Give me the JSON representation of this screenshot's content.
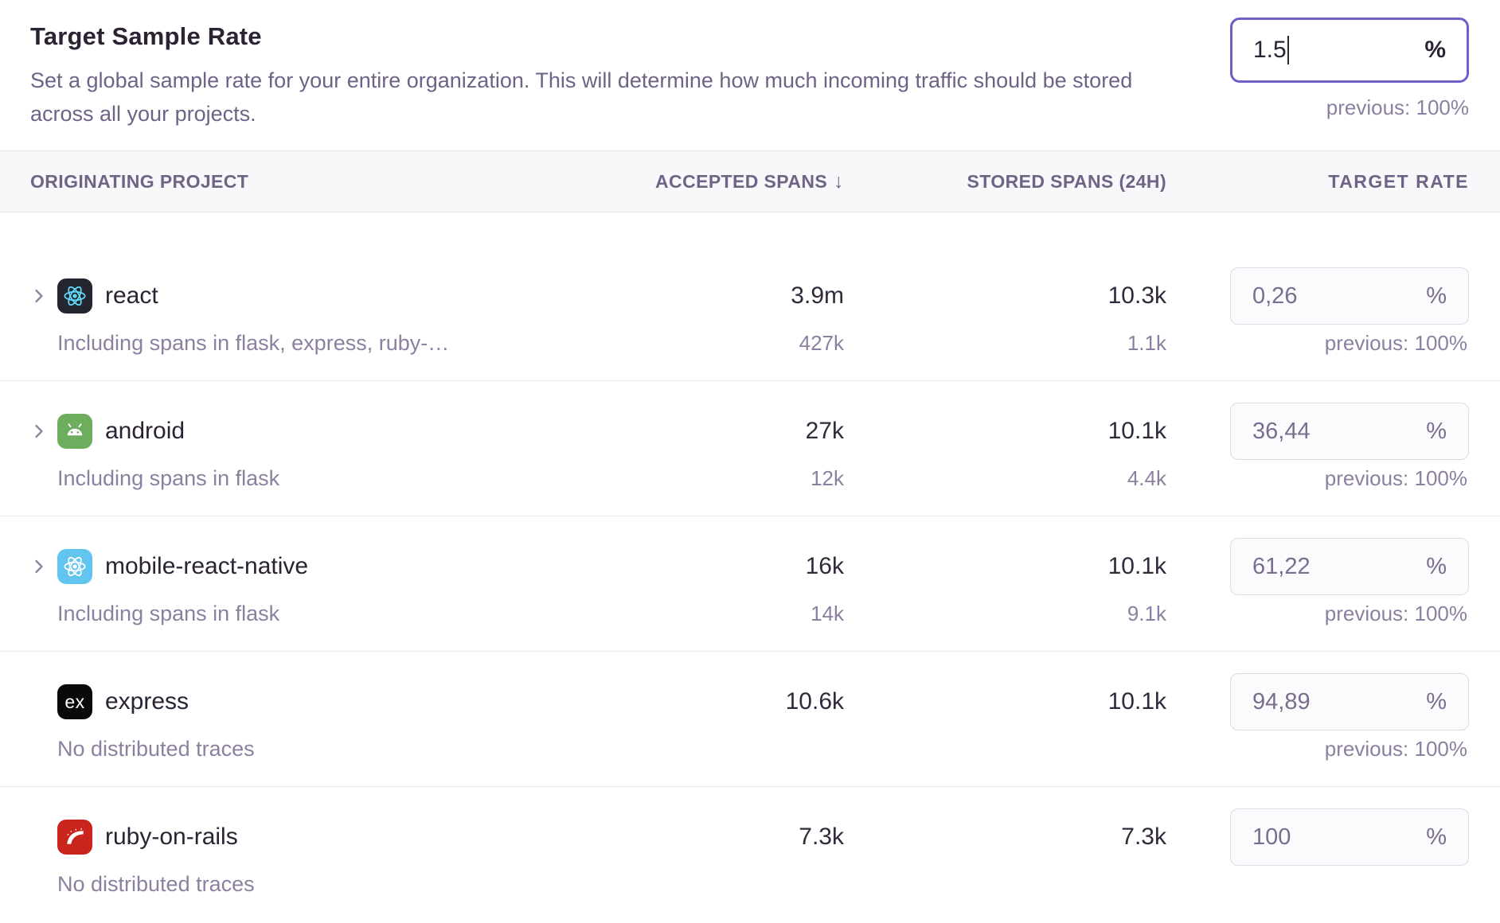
{
  "header": {
    "title": "Target Sample Rate",
    "description": "Set a global sample rate for your entire organization. This will determine how much incoming traffic should be stored across all your projects.",
    "global_input": {
      "value": "1.5",
      "suffix": "%",
      "previous": "previous: 100%"
    }
  },
  "table": {
    "columns": {
      "project": "Originating Project",
      "accepted": "Accepted Spans",
      "accepted_sort_icon": "↓",
      "stored": "Stored Spans (24h)",
      "target": "Target Rate"
    },
    "rows": [
      {
        "expandable": true,
        "platform": "react",
        "name": "react",
        "context": "Including spans in flask, express, ruby-…",
        "accepted": "3.9m",
        "accepted_sub": "427k",
        "stored": "10.3k",
        "stored_sub": "1.1k",
        "rate": "0,26",
        "suffix": "%",
        "previous": "previous: 100%"
      },
      {
        "expandable": true,
        "platform": "android",
        "name": "android",
        "context": "Including spans in flask",
        "accepted": "27k",
        "accepted_sub": "12k",
        "stored": "10.1k",
        "stored_sub": "4.4k",
        "rate": "36,44",
        "suffix": "%",
        "previous": "previous: 100%"
      },
      {
        "expandable": true,
        "platform": "react-native",
        "name": "mobile-react-native",
        "context": "Including spans in flask",
        "accepted": "16k",
        "accepted_sub": "14k",
        "stored": "10.1k",
        "stored_sub": "9.1k",
        "rate": "61,22",
        "suffix": "%",
        "previous": "previous: 100%"
      },
      {
        "expandable": false,
        "platform": "express",
        "name": "express",
        "context": "No distributed traces",
        "accepted": "10.6k",
        "accepted_sub": "",
        "stored": "10.1k",
        "stored_sub": "",
        "rate": "94,89",
        "suffix": "%",
        "previous": "previous: 100%"
      },
      {
        "expandable": false,
        "platform": "ruby-on-rails",
        "name": "ruby-on-rails",
        "context": "No distributed traces",
        "accepted": "7.3k",
        "accepted_sub": "",
        "stored": "7.3k",
        "stored_sub": "",
        "rate": "100",
        "suffix": "%",
        "previous": ""
      }
    ]
  },
  "colors": {
    "accent_focus_border": "#6D5FC8",
    "heading_text": "#2B2233",
    "muted_text": "#8C80A0",
    "header_row_bg": "#F8F7FA",
    "platform_bg": {
      "react": "#23262E",
      "android": "#6CAE5E",
      "react-native": "#62C5EF",
      "express": "#0A0A0A",
      "ruby-on-rails": "#C9251D"
    },
    "react_logo": "#61DAFB"
  }
}
